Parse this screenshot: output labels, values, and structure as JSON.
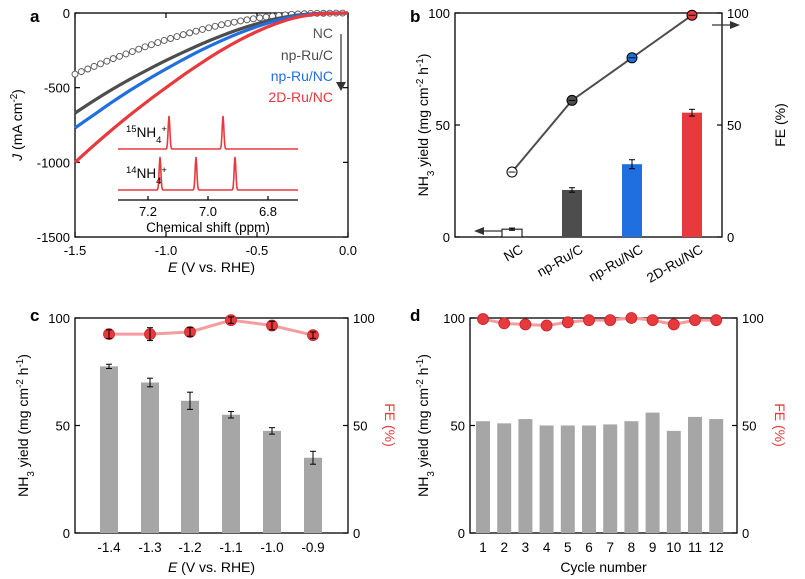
{
  "panels": {
    "a": "a",
    "b": "b",
    "c": "c",
    "d": "d"
  },
  "colors": {
    "NC": "#000000",
    "np-Ru/C": "#4d4d4d",
    "np-Ru/NC": "#1f6fe0",
    "2D-Ru/NC": "#e8393d",
    "bar_gray": "#a6a6a6",
    "fe_red": "#e8393d",
    "fe_line_light": "#f39da0",
    "axis": "#000000"
  },
  "chart_data": [
    {
      "id": "a",
      "type": "line",
      "title": "",
      "xlabel": "E (V vs. RHE)",
      "ylabel": "J (mA cm-2)",
      "xlim": [
        -1.5,
        0.0
      ],
      "ylim": [
        -1500,
        0
      ],
      "xticks": [
        -1.5,
        -1.0,
        -0.5,
        0.0
      ],
      "xtick_labels": [
        "-1.5",
        "-1.0",
        "-0.5",
        "0.0"
      ],
      "yticks": [
        -1500,
        -1000,
        -500,
        0
      ],
      "ytick_labels": [
        "-1500",
        "-1000",
        "-500",
        "0"
      ],
      "series": [
        {
          "name": "NC",
          "style": "open-circles",
          "x": [
            -1.5,
            -1.4,
            -1.3,
            -1.2,
            -1.1,
            -1.0,
            -0.9,
            -0.8,
            -0.7,
            -0.6,
            -0.5,
            -0.4,
            -0.3,
            -0.2,
            -0.1,
            0.0
          ],
          "y": [
            -410,
            -360,
            -310,
            -265,
            -220,
            -180,
            -143,
            -110,
            -80,
            -55,
            -35,
            -19,
            -8,
            -3,
            -1,
            0
          ]
        },
        {
          "name": "np-Ru/C",
          "x": [
            -1.5,
            -1.4,
            -1.3,
            -1.2,
            -1.1,
            -1.0,
            -0.9,
            -0.8,
            -0.7,
            -0.6,
            -0.5,
            -0.4,
            -0.3,
            -0.2,
            -0.1,
            0.0
          ],
          "y": [
            -670,
            -590,
            -515,
            -445,
            -380,
            -318,
            -260,
            -205,
            -155,
            -110,
            -72,
            -40,
            -18,
            -6,
            -1,
            0
          ]
        },
        {
          "name": "np-Ru/NC",
          "x": [
            -1.5,
            -1.4,
            -1.3,
            -1.2,
            -1.1,
            -1.0,
            -0.9,
            -0.8,
            -0.7,
            -0.6,
            -0.5,
            -0.4,
            -0.3,
            -0.2,
            -0.1,
            0.0
          ],
          "y": [
            -770,
            -685,
            -600,
            -520,
            -445,
            -375,
            -308,
            -245,
            -188,
            -136,
            -91,
            -53,
            -24,
            -8,
            -2,
            0
          ]
        },
        {
          "name": "2D-Ru/NC",
          "x": [
            -1.5,
            -1.4,
            -1.3,
            -1.2,
            -1.1,
            -1.0,
            -0.9,
            -0.8,
            -0.7,
            -0.6,
            -0.5,
            -0.4,
            -0.3,
            -0.2,
            -0.1,
            0.0
          ],
          "y": [
            -1000,
            -890,
            -785,
            -685,
            -590,
            -500,
            -412,
            -330,
            -253,
            -184,
            -124,
            -74,
            -35,
            -12,
            -3,
            0
          ]
        }
      ],
      "legend": [
        "NC",
        "np-Ru/C",
        "np-Ru/NC",
        "2D-Ru/NC"
      ],
      "inset": {
        "xlabel": "Chemical shift (ppm)",
        "xlim": [
          7.3,
          6.7
        ],
        "xticks": [
          7.2,
          7.0,
          6.8
        ],
        "xtick_labels": [
          "7.2",
          "7.0",
          "6.8"
        ],
        "traces": [
          {
            "label": "15NH4+",
            "sup": "15",
            "base": "NH",
            "sub": "4",
            "charge": "+",
            "peaks": [
              7.13,
              6.95
            ]
          },
          {
            "label": "14NH4+",
            "sup": "14",
            "base": "NH",
            "sub": "4",
            "charge": "+",
            "peaks": [
              7.16,
              7.04,
              6.91
            ]
          }
        ]
      }
    },
    {
      "id": "b",
      "type": "bar",
      "categories": [
        "NC",
        "np-Ru/C",
        "np-Ru/NC",
        "2D-Ru/NC"
      ],
      "ylabel_left": "NH3 yield (mg cm-2 h-1)",
      "ylabel_right": "FE (%)",
      "ylim_left": [
        0,
        100
      ],
      "ylim_right": [
        0,
        100
      ],
      "yticks": [
        0,
        50,
        100
      ],
      "ytick_labels": [
        "0",
        "50",
        "100"
      ],
      "series": [
        {
          "name": "NH3 yield",
          "axis": "left",
          "values": [
            3.5,
            21,
            32.5,
            55.5
          ],
          "errors": [
            0.5,
            1,
            2,
            1.5
          ],
          "fills": [
            "#ffffff",
            "#4d4d4d",
            "#1f6fe0",
            "#e8393d"
          ]
        },
        {
          "name": "FE",
          "axis": "right",
          "values": [
            29,
            61,
            80,
            99
          ],
          "errors": [
            1,
            1.5,
            1,
            1
          ],
          "point_fills": [
            "#ffffff",
            "#4d4d4d",
            "#1f6fe0",
            "#e8393d"
          ]
        }
      ]
    },
    {
      "id": "c",
      "type": "bar",
      "categories": [
        "-1.4",
        "-1.3",
        "-1.2",
        "-1.1",
        "-1.0",
        "-0.9"
      ],
      "xlabel": "E (V vs. RHE)",
      "ylabel_left": "NH3 yield (mg cm-2 h-1)",
      "ylabel_right": "FE (%)",
      "ylim_left": [
        0,
        100
      ],
      "ylim_right": [
        0,
        100
      ],
      "yticks": [
        0,
        50,
        100
      ],
      "ytick_labels": [
        "0",
        "50",
        "100"
      ],
      "series": [
        {
          "name": "NH3 yield",
          "axis": "left",
          "values": [
            77.5,
            70,
            61.5,
            55,
            47.5,
            35
          ],
          "errors": [
            1,
            2,
            4,
            1.5,
            1.5,
            3
          ]
        },
        {
          "name": "FE",
          "axis": "right",
          "values": [
            92.5,
            92.5,
            93.5,
            99,
            96.5,
            92
          ],
          "errors": [
            2,
            3,
            2,
            1.5,
            2,
            1.5
          ]
        }
      ]
    },
    {
      "id": "d",
      "type": "bar",
      "categories": [
        "1",
        "2",
        "3",
        "4",
        "5",
        "6",
        "7",
        "8",
        "9",
        "10",
        "11",
        "12"
      ],
      "xlabel": "Cycle number",
      "ylabel_left": "NH3 yield (mg cm-2 h-1)",
      "ylabel_right": "FE (%)",
      "ylim_left": [
        0,
        100
      ],
      "ylim_right": [
        0,
        100
      ],
      "yticks": [
        0,
        50,
        100
      ],
      "ytick_labels": [
        "0",
        "50",
        "100"
      ],
      "series": [
        {
          "name": "NH3 yield",
          "axis": "left",
          "values": [
            52,
            51,
            53,
            50,
            50,
            50,
            50.5,
            52,
            56,
            47.5,
            54,
            53
          ]
        },
        {
          "name": "FE",
          "axis": "right",
          "values": [
            99.5,
            97.5,
            97,
            96.5,
            98,
            99,
            99,
            100,
            99,
            97,
            99,
            99
          ]
        }
      ]
    }
  ]
}
